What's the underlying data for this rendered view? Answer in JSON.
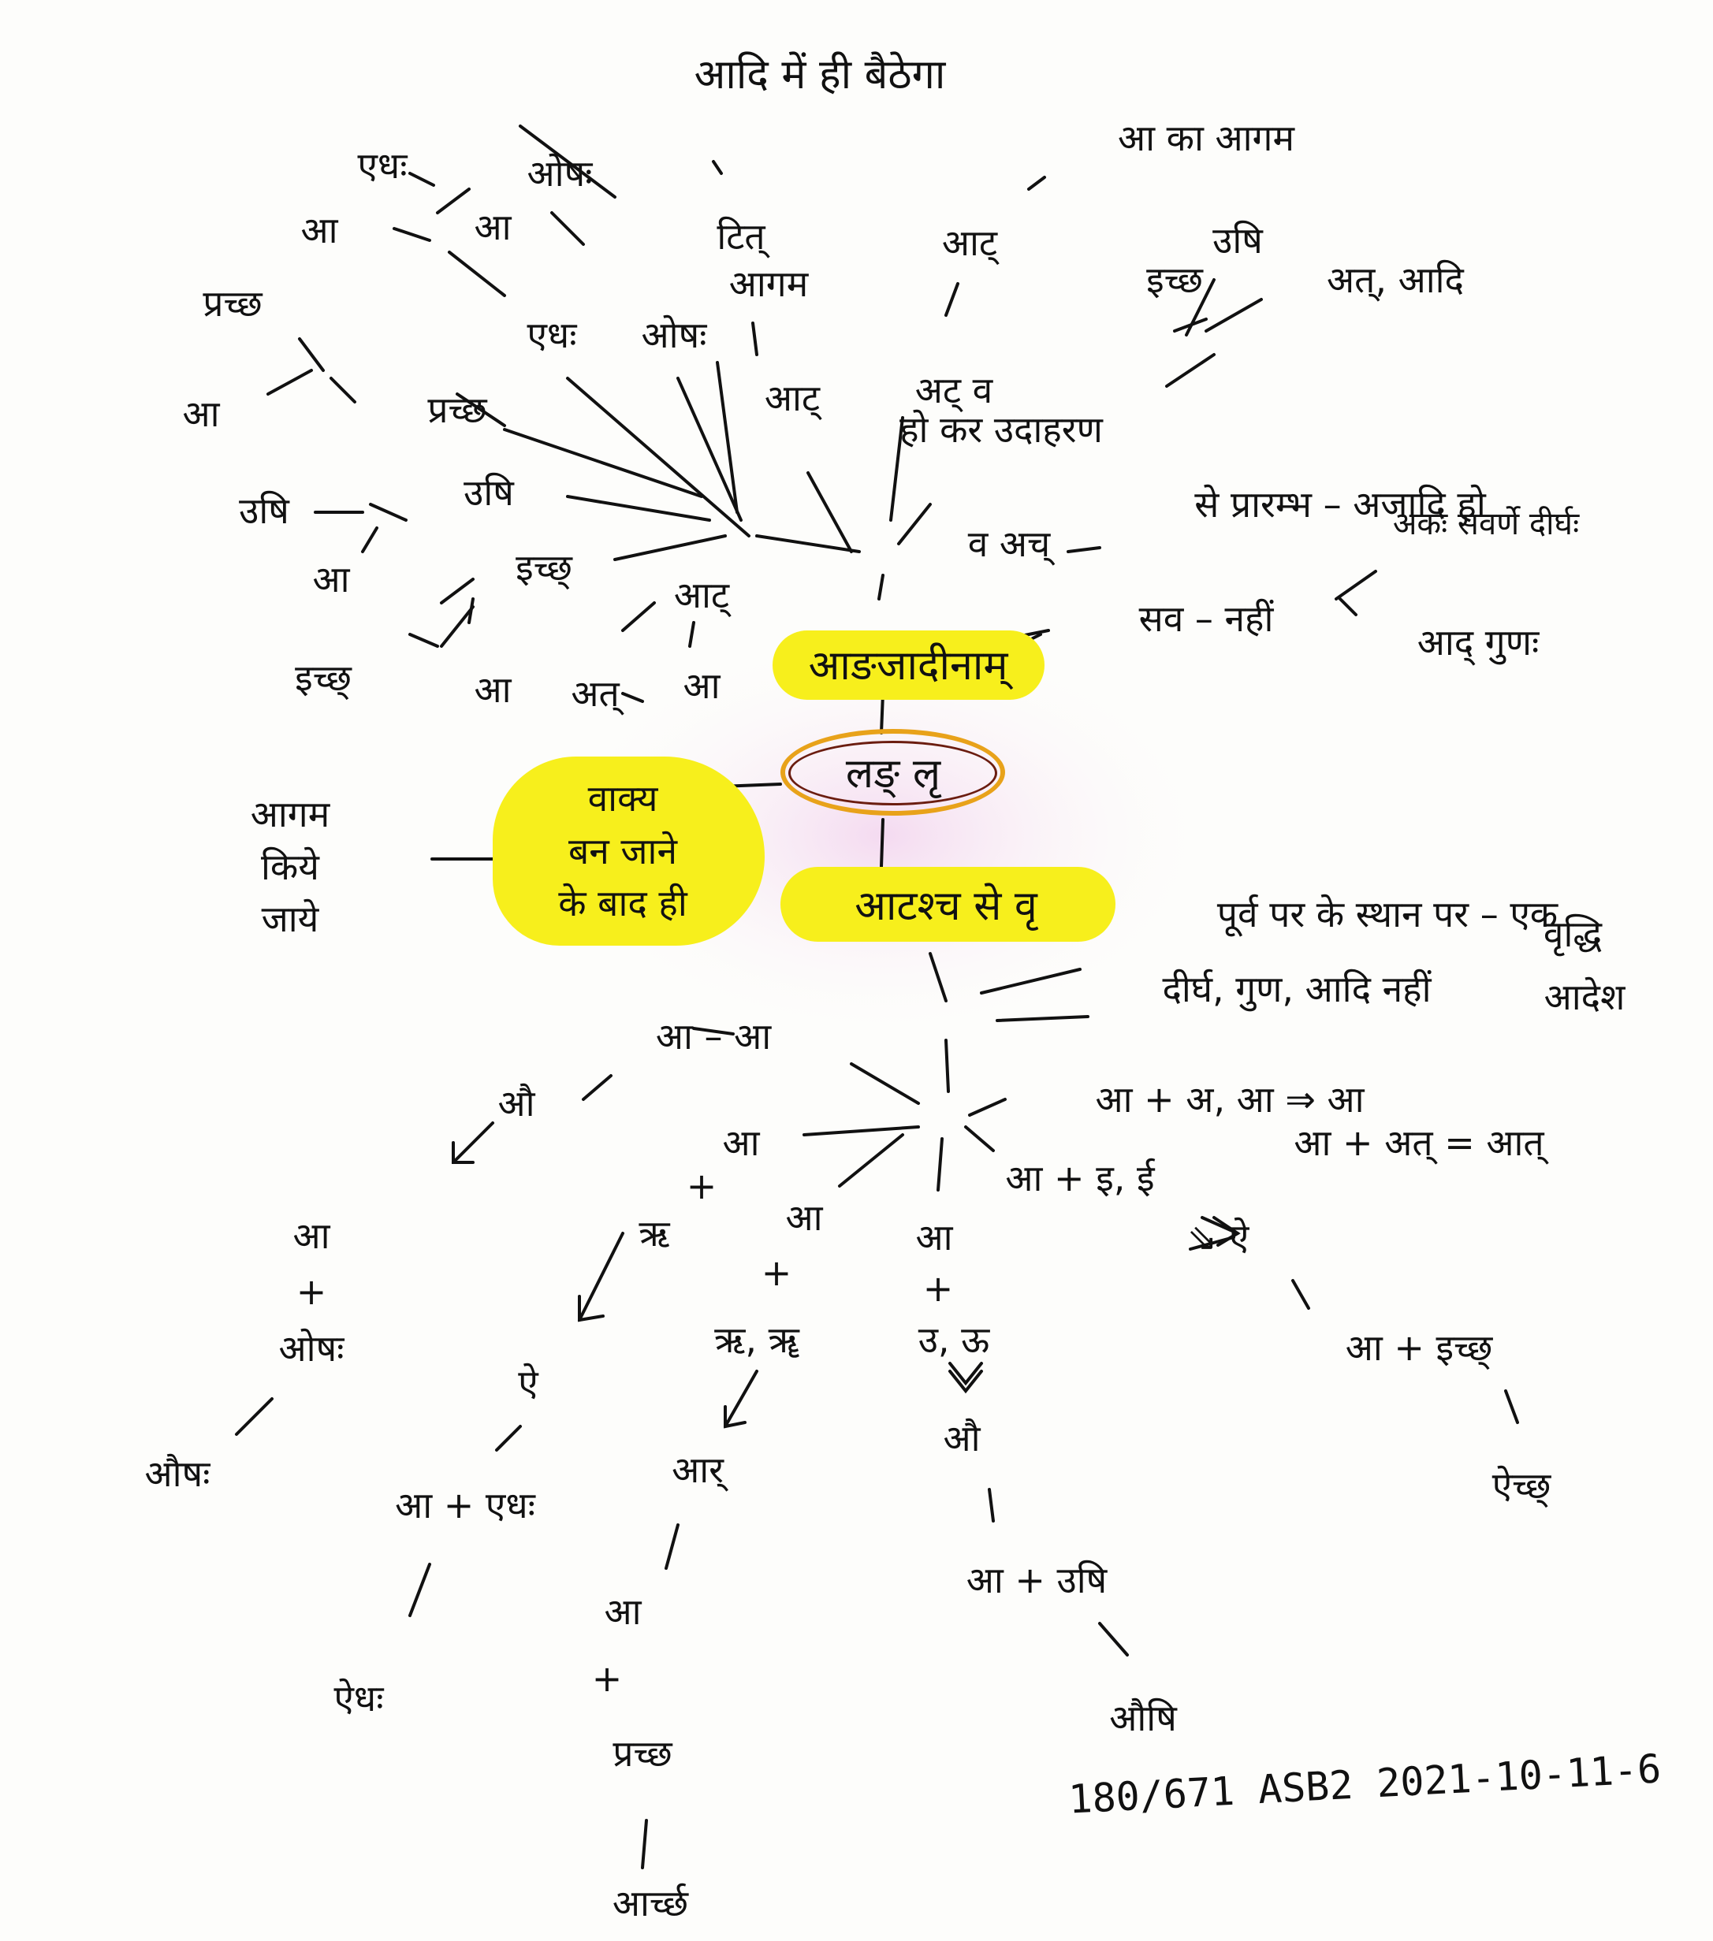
{
  "colors": {
    "ink": "#111111",
    "highlight": "#f7ef1c",
    "ring": "#e8a21a",
    "wash": "#f6e4f3"
  },
  "center": {
    "top": "आङजादीनाम्",
    "circle": "लङ् लृ",
    "bottom": "आटश्च से वृ",
    "left_lines": [
      "वाक्य",
      "बन जाने",
      "के बाद ही"
    ],
    "side_lines": [
      "आगम",
      "किये",
      "जाये"
    ]
  },
  "upper": {
    "words": {
      "adi_me_hi": "आदि में ही बैठेगा",
      "edh1": "एधः",
      "osh1": "ओषः",
      "aa1": "आ",
      "aa2": "आ",
      "pichhad": "प्रच्छ",
      "aa3": "आ",
      "pichhad2": "प्रच्छ",
      "edh2": "एधः",
      "osh2": "ओषः",
      "tit": "टित्",
      "agam": "आगम",
      "aat1": "आट्",
      "aa_ka_agam": "आ का आगम",
      "ushi1": "उषि",
      "ichh": "इच्छ",
      "at_adi": "अत्, आदि",
      "aat2": "आट्",
      "at2": "अट् व",
      "hokar": "हो कर उदाहरण",
      "ushi2": "उषि",
      "ushi3": "उषि",
      "aa4": "आ",
      "ichh2": "इच्छ्",
      "aat3": "आट्",
      "aa5": "आ",
      "at3": "अत्",
      "aa6": "आ",
      "ichh3": "इच्छ्",
      "va_ach": "व अच्",
      "se_prarambh": "से प्रारम्भ – अजादि हो",
      "akah_savarne": "अकः सवर्णे दीर्घः",
      "sav_nahi": "सव – नहीं",
      "aad_gunah": "आद् गुणः"
    }
  },
  "middle": {
    "purva_line": "पूर्व पर के स्थान पर – एक",
    "dirgh_line": "दीर्घ, गुण, आदि नहीं",
    "vriddhi": "वृद्धि",
    "adesh": "आदेश",
    "aa_aa": "आ – आ",
    "rule1": "आ + अ, आ ⇒ आ",
    "rule2": "आ + अत् = आत्",
    "aa_ie": "आ + इ, ई",
    "ai_sym": "⇘ ऐ"
  },
  "lower": {
    "au": "औ",
    "aa_pl_osh": [
      "आ",
      "+",
      "ओषः"
    ],
    "aush": "औषः",
    "plus1": "+",
    "aa7": "आ",
    "ai1": "ऐ",
    "aa_plus_edh": "आ + एधः",
    "aidh": "ऐधः",
    "ri1": "ऋ",
    "aa8": "आ",
    "plus2": "+",
    "ri_rii": "ऋ, ॠ",
    "aar": "आर्",
    "aa9": "आ",
    "plus3": "+",
    "pichhad3": "प्रच्छ",
    "aarchh": "आर्च्छ",
    "aa10": "आ",
    "plus4": "+",
    "u_uu": "उ, ऊ",
    "au2": "औ",
    "aa_plus_ushi": "आ + उषि",
    "aushi": "औषि",
    "aa_plus_ichh": "आ + इच्छ्",
    "aichh": "ऐच्छ्"
  },
  "footer": {
    "note": "180/671 ASB2 2021-10-11-6"
  }
}
